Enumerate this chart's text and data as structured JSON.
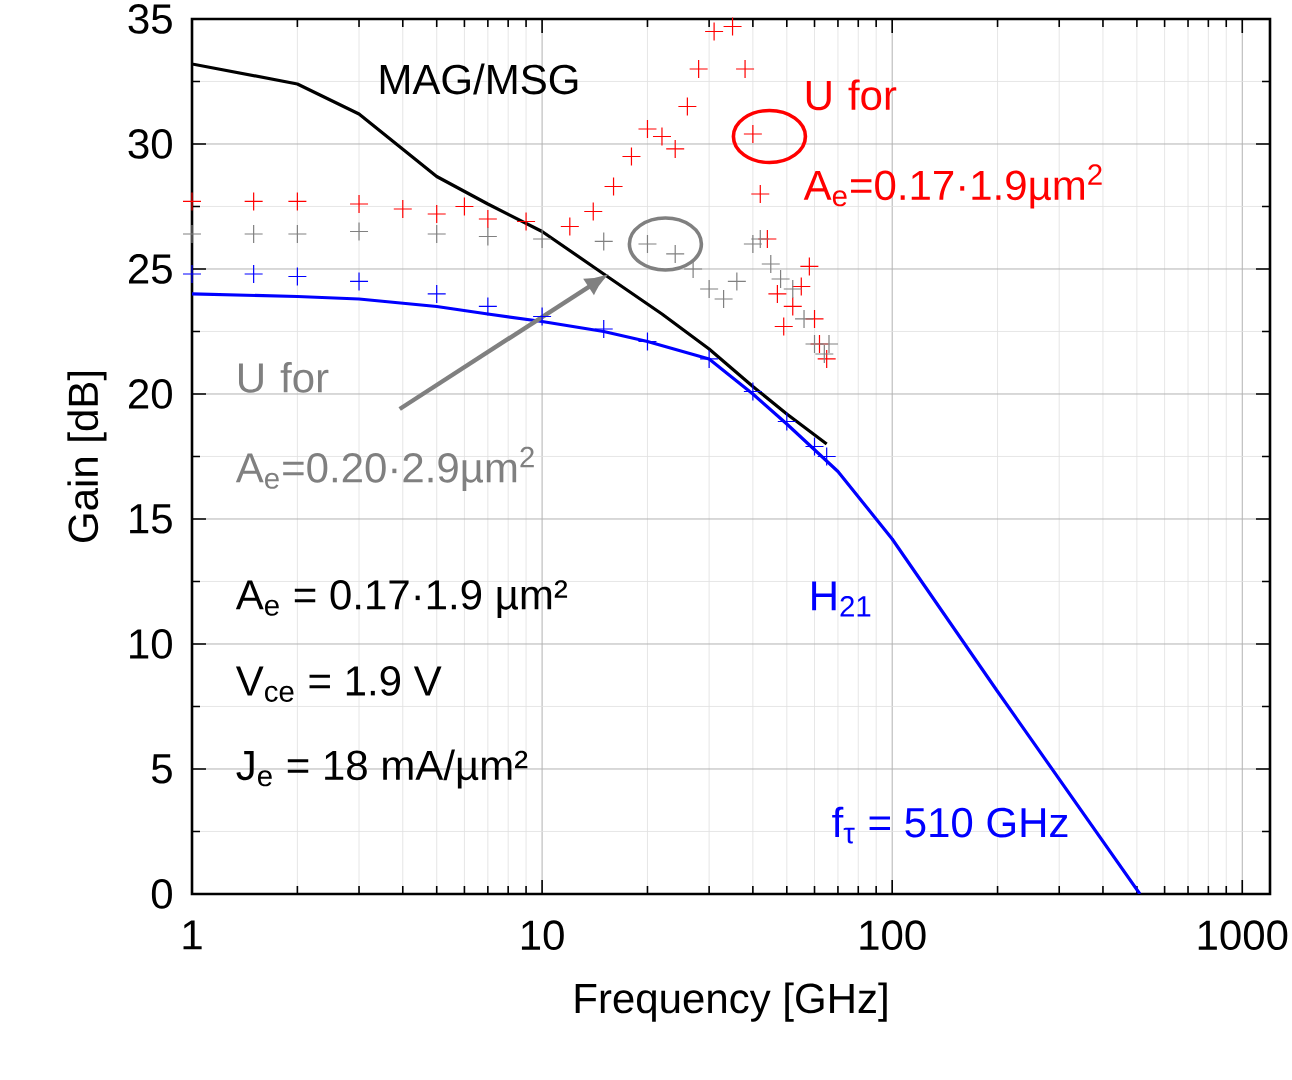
{
  "chart_data": {
    "type": "line",
    "xlabel": "Frequency [GHz]",
    "ylabel": "Gain [dB]",
    "log": "x",
    "grid": true,
    "xlim": [
      1,
      1200
    ],
    "ylim": [
      0,
      35
    ],
    "xticks": [
      1,
      10,
      100,
      1000
    ],
    "yticks": [
      0,
      5,
      10,
      15,
      20,
      25,
      30,
      35
    ],
    "series": [
      {
        "name": "MAG/MSG",
        "color": "#000000",
        "x": [
          1,
          2,
          3,
          5,
          7,
          10,
          15,
          22,
          30,
          40,
          50,
          65
        ],
        "values": [
          33.2,
          32.4,
          31.2,
          28.7,
          27.6,
          26.5,
          24.8,
          23.2,
          21.8,
          20.3,
          19.2,
          18.0
        ]
      },
      {
        "name": "U for A$_{e}$=0.17·1.9µm$^{2}$",
        "type": "scatter",
        "marker": "cross",
        "color": "#ff0000",
        "x": [
          1,
          1.5,
          2,
          3,
          4,
          5,
          6,
          7,
          9,
          12,
          14,
          16,
          18,
          20,
          22,
          24,
          26,
          28,
          31,
          35,
          38,
          40,
          42,
          44,
          47,
          49,
          52,
          55,
          58,
          60,
          62,
          65
        ],
        "values": [
          27.7,
          27.7,
          27.7,
          27.6,
          27.4,
          27.2,
          27.5,
          27.0,
          26.9,
          26.7,
          27.3,
          28.3,
          29.5,
          30.6,
          30.3,
          29.8,
          31.5,
          33.0,
          34.5,
          34.7,
          33.0,
          30.4,
          28.0,
          26.2,
          24.0,
          22.7,
          23.5,
          24.3,
          25.1,
          23.0,
          22.0,
          21.4
        ]
      },
      {
        "name": "U for A$_{e}$=0.20·2.9µm$^{2}$",
        "type": "scatter",
        "marker": "cross",
        "color": "#808080",
        "x": [
          1,
          1.5,
          2,
          3,
          5,
          7,
          10,
          15,
          20,
          24,
          27,
          30,
          33,
          36,
          40,
          42,
          45,
          48,
          52,
          56,
          60,
          64,
          66
        ],
        "values": [
          26.4,
          26.4,
          26.4,
          26.5,
          26.4,
          26.3,
          26.2,
          26.1,
          26.0,
          25.6,
          25.0,
          24.2,
          23.8,
          24.5,
          26.0,
          26.2,
          25.2,
          24.6,
          24.2,
          23.0,
          22.0,
          21.6,
          22.0
        ]
      },
      {
        "type": "scatter",
        "marker": "cross",
        "color": "#0000ff",
        "x": [
          1,
          1.5,
          2,
          3,
          5,
          7,
          10,
          15,
          20,
          30,
          40,
          50,
          60,
          65
        ],
        "values": [
          24.8,
          24.8,
          24.7,
          24.5,
          24.0,
          23.5,
          23.1,
          22.6,
          22.1,
          21.4,
          20.1,
          18.9,
          17.9,
          17.5
        ]
      },
      {
        "name": "H$_{21}$",
        "color": "#0000ff",
        "x": [
          1,
          2,
          3,
          5,
          7,
          10,
          15,
          20,
          30,
          40,
          50,
          70,
          100,
          200,
          510
        ],
        "values": [
          24.0,
          23.9,
          23.8,
          23.5,
          23.2,
          22.9,
          22.5,
          22.1,
          21.4,
          20.0,
          18.8,
          16.9,
          14.2,
          8.1,
          0
        ]
      }
    ],
    "annotations": [
      "A$_{e}$ = 0.17·1.9 µm²",
      "V$_{ce}$ = 1.9 V",
      "J$_{e}$ = 18 mA/µm²",
      {
        "text": "f$_{τ}$ = 510 GHz",
        "x": 510,
        "y": 0
      }
    ]
  }
}
